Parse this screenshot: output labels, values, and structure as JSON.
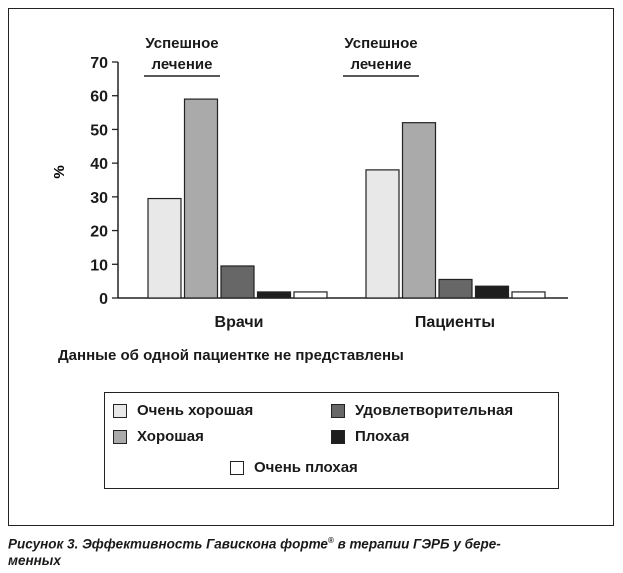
{
  "chart_data": {
    "type": "bar",
    "ylabel": "%",
    "ylim": [
      0,
      70
    ],
    "yticks": [
      "0",
      "10",
      "20",
      "30",
      "40",
      "50",
      "60",
      "70"
    ],
    "groups": [
      {
        "label": "Врачи",
        "header": [
          "Успешное",
          "лечение"
        ]
      },
      {
        "label": "Пациенты",
        "header": [
          "Успешное",
          "лечение"
        ]
      }
    ],
    "series": [
      {
        "name": "Очень хорошая",
        "color": "#e8e8e8",
        "values": [
          29.5,
          38
        ]
      },
      {
        "name": "Хорошая",
        "color": "#aaaaaa",
        "values": [
          59,
          52
        ]
      },
      {
        "name": "Удовлетворительная",
        "color": "#676767",
        "values": [
          9.5,
          5.5
        ]
      },
      {
        "name": "Плохая",
        "color": "#1e1e1e",
        "values": [
          1.8,
          3.5
        ]
      },
      {
        "name": "Очень плохая",
        "color": "#ffffff",
        "values": [
          1.8,
          1.8
        ]
      }
    ]
  },
  "note": "Данные об одной пациентке не представлены",
  "caption": {
    "text_before": "Рисунок 3. Эффективность Гавискона форте",
    "mark": "®",
    "text_after": " в терапии ГЭРБ у бере-",
    "line2": "менных"
  }
}
